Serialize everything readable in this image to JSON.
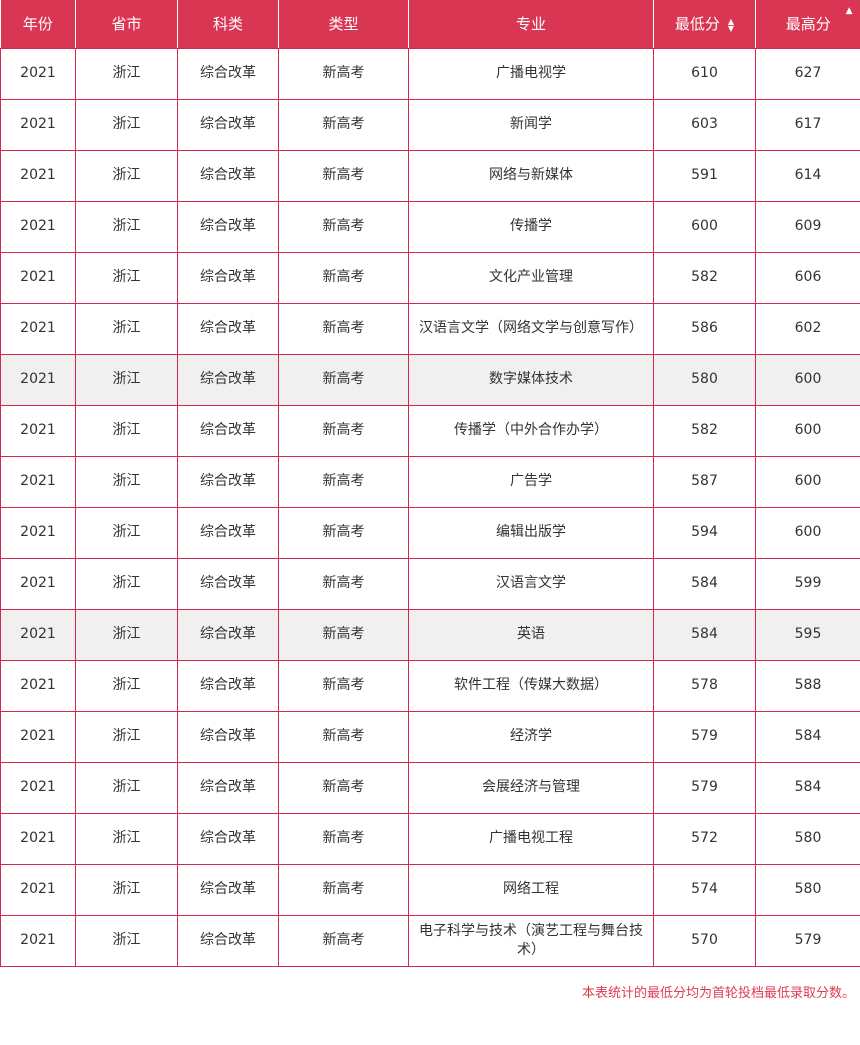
{
  "colors": {
    "header_background": "#d93654",
    "table_border": "#cf2a4e",
    "highlighted_row_background": "#f0f0f0",
    "cell_text": "#333333",
    "footnote_text": "#e13b52",
    "header_text": "#ffffff"
  },
  "table": {
    "columns": [
      {
        "label": "年份",
        "sortable": false
      },
      {
        "label": "省市",
        "sortable": false
      },
      {
        "label": "科类",
        "sortable": false
      },
      {
        "label": "类型",
        "sortable": false
      },
      {
        "label": "专业",
        "sortable": false
      },
      {
        "label": "最低分",
        "sortable": true,
        "sort_icon": "sort-both"
      },
      {
        "label": "最高分",
        "sortable": true,
        "sort_icon": "sort-asc"
      }
    ],
    "rows": [
      {
        "year": "2021",
        "province": "浙江",
        "category": "综合改革",
        "type": "新高考",
        "major": "广播电视学",
        "min": "610",
        "max": "627",
        "highlighted": false
      },
      {
        "year": "2021",
        "province": "浙江",
        "category": "综合改革",
        "type": "新高考",
        "major": "新闻学",
        "min": "603",
        "max": "617",
        "highlighted": false
      },
      {
        "year": "2021",
        "province": "浙江",
        "category": "综合改革",
        "type": "新高考",
        "major": "网络与新媒体",
        "min": "591",
        "max": "614",
        "highlighted": false
      },
      {
        "year": "2021",
        "province": "浙江",
        "category": "综合改革",
        "type": "新高考",
        "major": "传播学",
        "min": "600",
        "max": "609",
        "highlighted": false
      },
      {
        "year": "2021",
        "province": "浙江",
        "category": "综合改革",
        "type": "新高考",
        "major": "文化产业管理",
        "min": "582",
        "max": "606",
        "highlighted": false
      },
      {
        "year": "2021",
        "province": "浙江",
        "category": "综合改革",
        "type": "新高考",
        "major": "汉语言文学（网络文学与创意写作）",
        "min": "586",
        "max": "602",
        "highlighted": false
      },
      {
        "year": "2021",
        "province": "浙江",
        "category": "综合改革",
        "type": "新高考",
        "major": "数字媒体技术",
        "min": "580",
        "max": "600",
        "highlighted": true
      },
      {
        "year": "2021",
        "province": "浙江",
        "category": "综合改革",
        "type": "新高考",
        "major": "传播学（中外合作办学）",
        "min": "582",
        "max": "600",
        "highlighted": false
      },
      {
        "year": "2021",
        "province": "浙江",
        "category": "综合改革",
        "type": "新高考",
        "major": "广告学",
        "min": "587",
        "max": "600",
        "highlighted": false
      },
      {
        "year": "2021",
        "province": "浙江",
        "category": "综合改革",
        "type": "新高考",
        "major": "编辑出版学",
        "min": "594",
        "max": "600",
        "highlighted": false
      },
      {
        "year": "2021",
        "province": "浙江",
        "category": "综合改革",
        "type": "新高考",
        "major": "汉语言文学",
        "min": "584",
        "max": "599",
        "highlighted": false
      },
      {
        "year": "2021",
        "province": "浙江",
        "category": "综合改革",
        "type": "新高考",
        "major": "英语",
        "min": "584",
        "max": "595",
        "highlighted": true
      },
      {
        "year": "2021",
        "province": "浙江",
        "category": "综合改革",
        "type": "新高考",
        "major": "软件工程（传媒大数据）",
        "min": "578",
        "max": "588",
        "highlighted": false
      },
      {
        "year": "2021",
        "province": "浙江",
        "category": "综合改革",
        "type": "新高考",
        "major": "经济学",
        "min": "579",
        "max": "584",
        "highlighted": false
      },
      {
        "year": "2021",
        "province": "浙江",
        "category": "综合改革",
        "type": "新高考",
        "major": "会展经济与管理",
        "min": "579",
        "max": "584",
        "highlighted": false
      },
      {
        "year": "2021",
        "province": "浙江",
        "category": "综合改革",
        "type": "新高考",
        "major": "广播电视工程",
        "min": "572",
        "max": "580",
        "highlighted": false
      },
      {
        "year": "2021",
        "province": "浙江",
        "category": "综合改革",
        "type": "新高考",
        "major": "网络工程",
        "min": "574",
        "max": "580",
        "highlighted": false
      },
      {
        "year": "2021",
        "province": "浙江",
        "category": "综合改革",
        "type": "新高考",
        "major": "电子科学与技术（演艺工程与舞台技术）",
        "min": "570",
        "max": "579",
        "highlighted": false
      }
    ]
  },
  "sort_icons": {
    "min_score": "sort-both-icon",
    "max_score": "sort-asc-icon",
    "up_glyph": "▲",
    "down_glyph": "▼"
  },
  "footnote": "本表统计的最低分均为首轮投档最低录取分数。"
}
